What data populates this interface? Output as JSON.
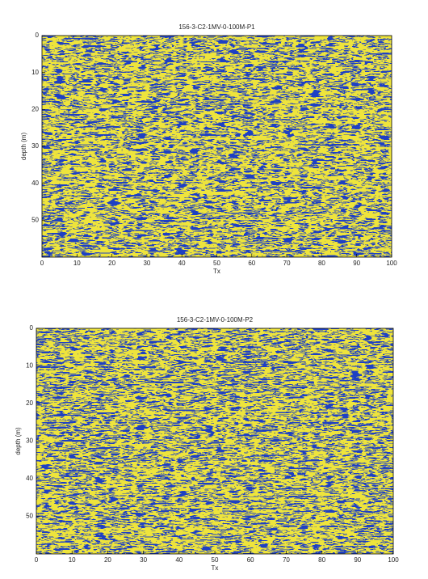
{
  "chart_data": [
    {
      "type": "image",
      "title": "156-3-C2-1MV-0-100M-P1",
      "xlabel": "Tx",
      "ylabel": "depth (m)",
      "xlim": [
        0,
        100
      ],
      "xticks": [
        0,
        10,
        20,
        30,
        40,
        50,
        60,
        70,
        80,
        90,
        100
      ],
      "ylim": [
        0,
        60
      ],
      "yticks": [
        0,
        10,
        20,
        30,
        40,
        50
      ],
      "y_inverted": true,
      "colors": [
        "#1e40c4",
        "#eee43c"
      ]
    },
    {
      "type": "image",
      "title": "156-3-C2-1MV-0-100M-P2",
      "xlabel": "Tx",
      "ylabel": "depth (m)",
      "xlim": [
        0,
        100
      ],
      "xticks": [
        0,
        10,
        20,
        30,
        40,
        50,
        60,
        70,
        80,
        90,
        100
      ],
      "ylim": [
        0,
        60
      ],
      "yticks": [
        0,
        10,
        20,
        30,
        40,
        50
      ],
      "y_inverted": true,
      "colors": [
        "#1e40c4",
        "#eee43c"
      ]
    }
  ]
}
